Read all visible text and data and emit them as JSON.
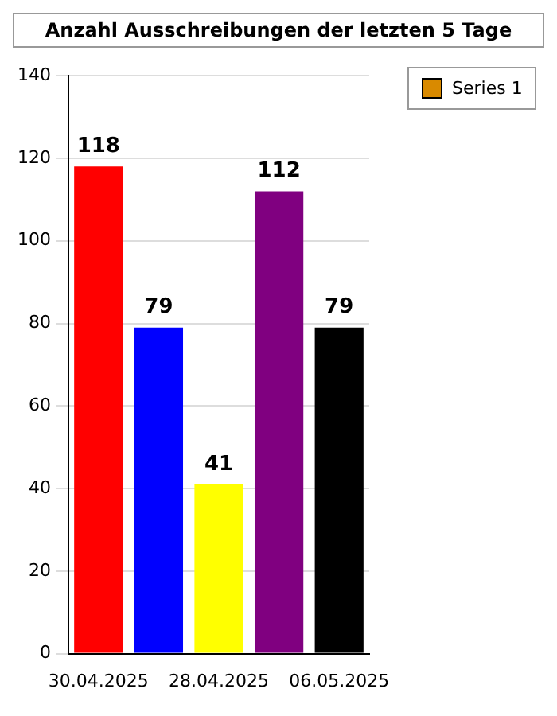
{
  "chart_data": {
    "type": "bar",
    "title": "Anzahl Ausschreibungen der letzten 5 Tage",
    "categories": [
      "30.04.2025",
      null,
      "28.04.2025",
      null,
      "06.05.2025"
    ],
    "series": [
      {
        "name": "Series 1",
        "color": "#d98a00",
        "colors": [
          "#ff0000",
          "#0000ff",
          "#ffff00",
          "#800080",
          "#000000"
        ],
        "values": [
          118,
          79,
          41,
          112,
          79
        ]
      }
    ],
    "ylim": [
      0,
      140
    ],
    "yticks": [
      0,
      20,
      40,
      60,
      80,
      100,
      120,
      140
    ],
    "grid": "y",
    "legend": "top right",
    "data_labels": true
  }
}
